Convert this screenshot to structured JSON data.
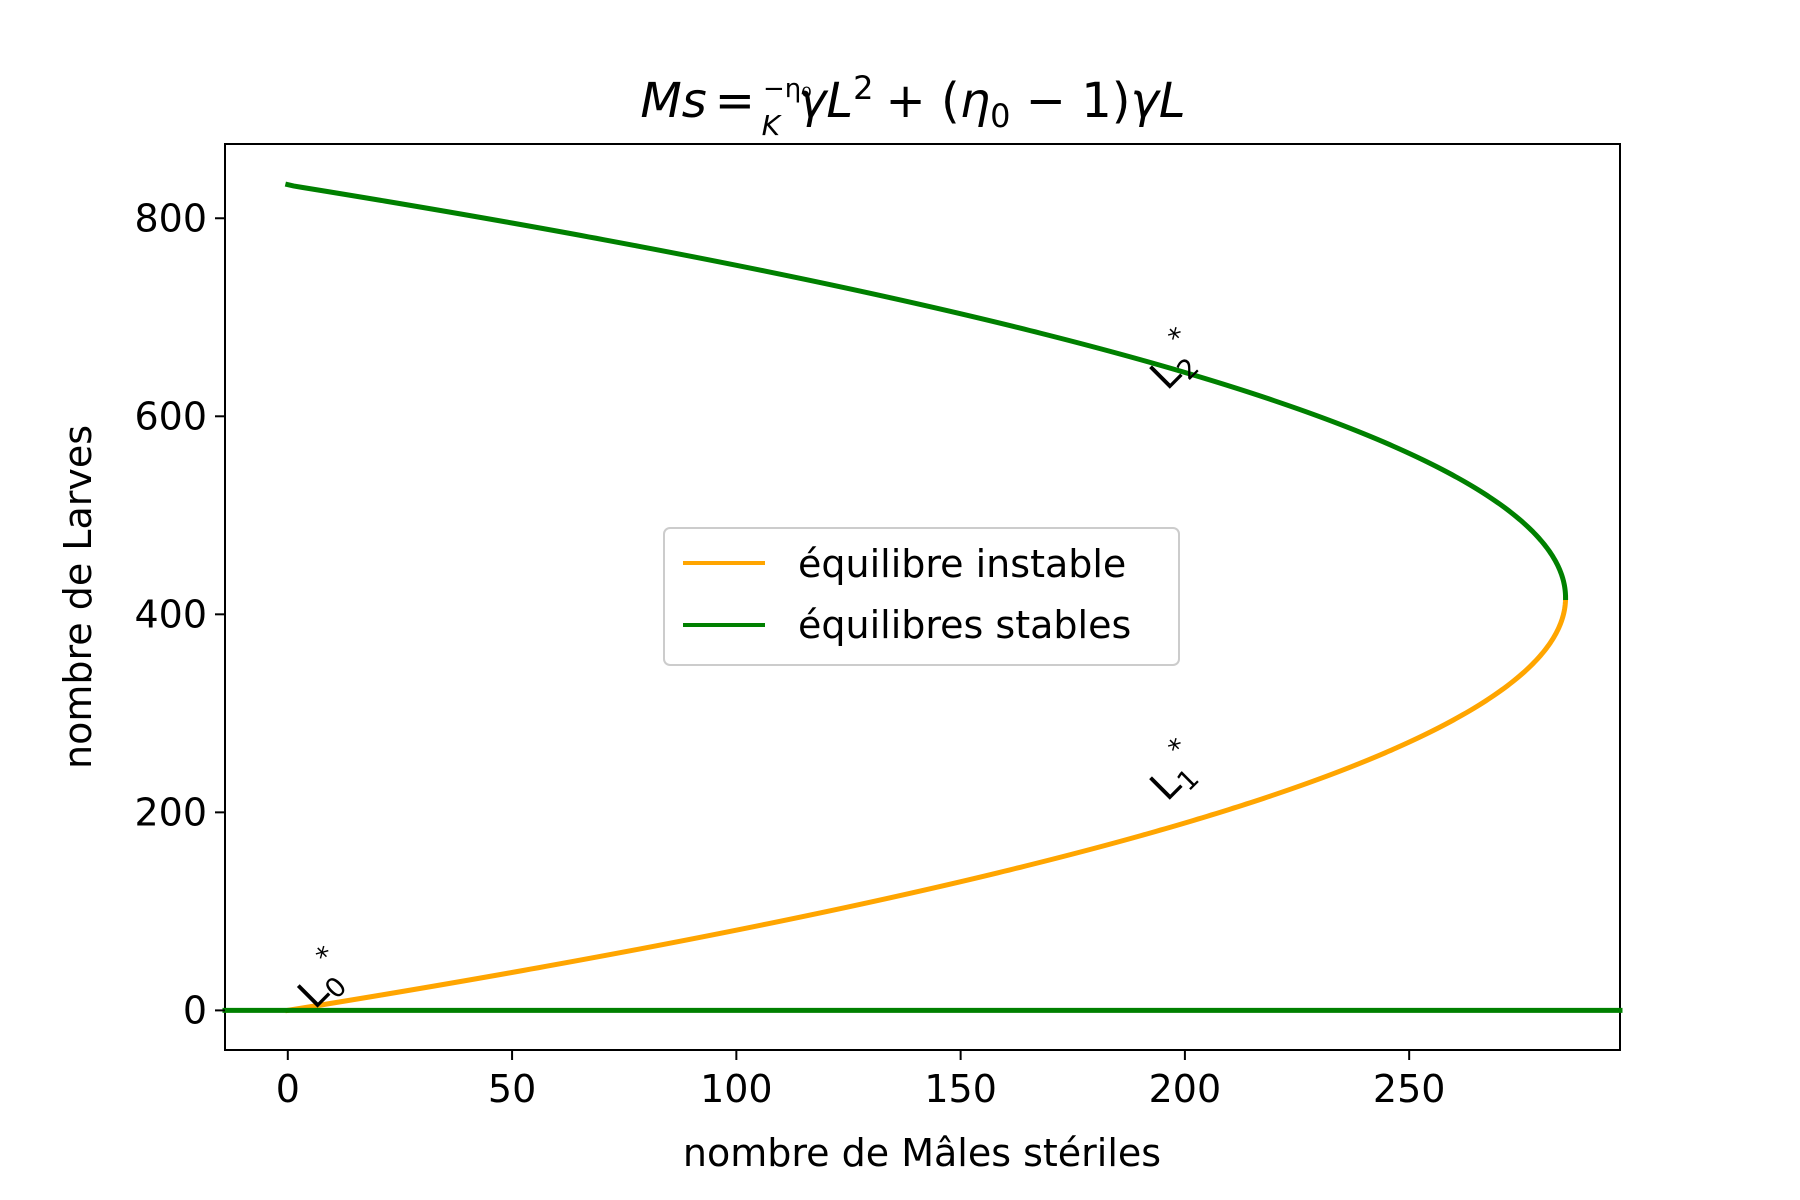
{
  "chart_data": {
    "type": "line",
    "title": {
      "lhs": "Ms",
      "eq": "=",
      "frac_num": "−η₀",
      "frac_den": "K",
      "term1": "γL",
      "sq": "2",
      "plus": "+ (",
      "eta": "η",
      "eta_sub": "0",
      "minus_one": " − 1)",
      "term2": "γL"
    },
    "xlabel": "nombre de Mâles stériles",
    "ylabel": "nombre de Larves",
    "xlim": [
      -14,
      297
    ],
    "ylim": [
      -40,
      875
    ],
    "xticks": [
      0,
      50,
      100,
      150,
      200,
      250
    ],
    "yticks": [
      0,
      200,
      400,
      600,
      800
    ],
    "xtick_labels": [
      "0",
      "50",
      "100",
      "150",
      "200",
      "250"
    ],
    "ytick_labels": [
      "0",
      "200",
      "400",
      "600",
      "800"
    ],
    "grid": false,
    "curve_params": {
      "a": 0.00164,
      "b": 1.367
    },
    "series": [
      {
        "name": "équilibre instable",
        "color": "#ffa500",
        "kind": "curve",
        "y_range": [
          0,
          417
        ]
      },
      {
        "name": "équilibres stables",
        "color": "#008000",
        "kind": "curve",
        "y_range": [
          417,
          834
        ]
      },
      {
        "color": "#008000",
        "kind": "hline",
        "y": 0,
        "x_range": [
          -14,
          297
        ]
      }
    ],
    "points": [
      {
        "x": 0,
        "y": 0
      },
      {
        "x": 50,
        "y": 37
      },
      {
        "x": 100,
        "y": 81
      },
      {
        "x": 150,
        "y": 130
      },
      {
        "x": 200,
        "y": 190
      },
      {
        "x": 250,
        "y": 268
      },
      {
        "x": 285,
        "y": 417
      },
      {
        "x": 250,
        "y": 566
      },
      {
        "x": 200,
        "y": 644
      },
      {
        "x": 150,
        "y": 704
      },
      {
        "x": 100,
        "y": 753
      },
      {
        "x": 50,
        "y": 797
      },
      {
        "x": 0,
        "y": 834
      }
    ],
    "legend_position": "center",
    "annotations": [
      {
        "base": "L",
        "sub": "0",
        "sup": "*",
        "x": 6,
        "y": 0,
        "color": "#ff0000",
        "rotation": 45
      },
      {
        "base": "L",
        "sub": "1",
        "sup": "*",
        "x": 196,
        "y": 210,
        "color": "#ff0000",
        "rotation": 45
      },
      {
        "base": "L",
        "sub": "2",
        "sup": "*",
        "x": 196,
        "y": 625,
        "color": "#ff0000",
        "rotation": 45
      }
    ]
  }
}
